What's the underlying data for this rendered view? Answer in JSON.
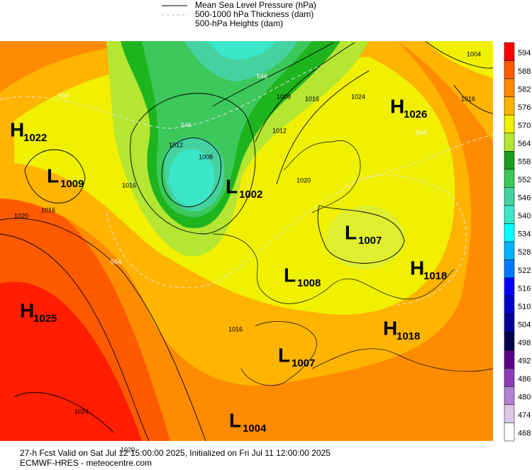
{
  "legend": [
    "Mean Sea Level Pressure (hPa)",
    "500-1000 hPa Thickness (dam)",
    "500-hPa Heights (dam)"
  ],
  "colorbar": {
    "labels": [
      594,
      588,
      582,
      576,
      570,
      564,
      558,
      552,
      546,
      540,
      534,
      528,
      522,
      516,
      510,
      504,
      498,
      492,
      486,
      480,
      474,
      468
    ],
    "colors": [
      "#ff0000",
      "#ff5a00",
      "#ff8c00",
      "#ffb400",
      "#f0f000",
      "#b4e632",
      "#1e9b1e",
      "#3cc85a",
      "#46d2a0",
      "#3ce6c8",
      "#00ffff",
      "#00b4ff",
      "#0078ff",
      "#0000ff",
      "#0000c8",
      "#000096",
      "#000050",
      "#5a0082",
      "#8c3cb4",
      "#b482d2",
      "#dcc8e6",
      "#ffffff"
    ]
  },
  "centers": [
    {
      "letter": "H",
      "value": 1022
    },
    {
      "letter": "L",
      "value": 1009
    },
    {
      "letter": "H",
      "value": 1026
    },
    {
      "letter": "L",
      "value": 1002
    },
    {
      "letter": "L",
      "value": 1007
    },
    {
      "letter": "H",
      "value": 1018
    },
    {
      "letter": "L",
      "value": 1008
    },
    {
      "letter": "H",
      "value": 1025
    },
    {
      "letter": "H",
      "value": 1018
    },
    {
      "letter": "L",
      "value": 1007
    },
    {
      "letter": "L",
      "value": 1004
    }
  ],
  "contour_labels": [
    1016,
    1020,
    1016,
    1012,
    1008,
    1008,
    1012,
    1016,
    1024,
    1020,
    1016,
    1024,
    1020,
    1004,
    1016,
    564,
    546,
    546,
    564,
    564
  ],
  "footer": [
    "27-h Fcst Valid on Sat Jul 12 15:00:00 2025, Initialized on Fri Jul 11 12:00:00 2025",
    "ECMWF-HRES  - meteocentre.com"
  ]
}
